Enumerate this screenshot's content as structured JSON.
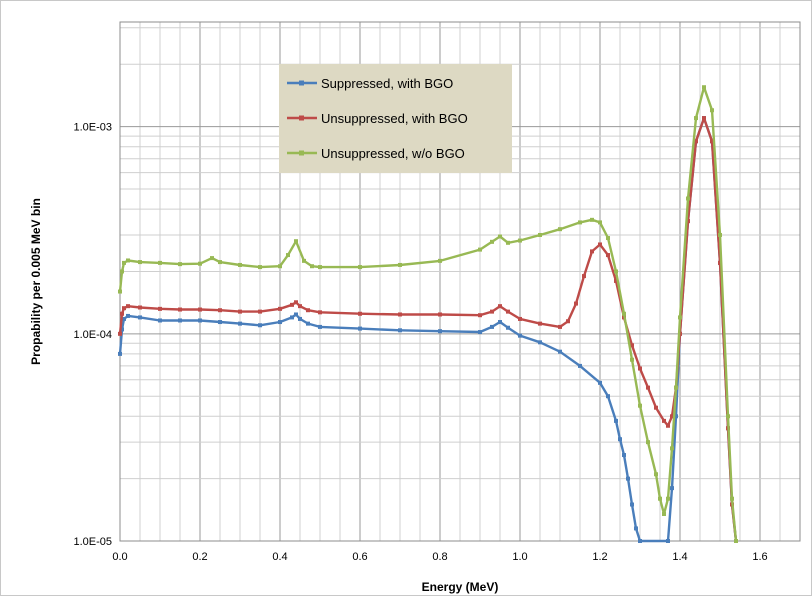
{
  "chart_data": {
    "type": "line",
    "xlabel": "Energy (MeV)",
    "ylabel": "Propability per 0.005 MeV bin",
    "x_ticks": [
      "0.0",
      "0.2",
      "0.4",
      "0.6",
      "0.8",
      "1.0",
      "1.2",
      "1.4",
      "1.6"
    ],
    "y_ticks": [
      "1.0E-05",
      "1.0E-04",
      "1.0E-03"
    ],
    "xlim": [
      0,
      1.7
    ],
    "ylim": [
      1e-05,
      0.0032
    ],
    "y_scale": "log",
    "grid": true,
    "legend_placement": "top-center",
    "legend_bg": "#ddd9c3",
    "series": [
      {
        "name": "Suppressed, with BGO",
        "color": "#4a7ebb",
        "x": [
          0.0,
          0.005,
          0.01,
          0.02,
          0.05,
          0.1,
          0.15,
          0.2,
          0.25,
          0.3,
          0.35,
          0.4,
          0.43,
          0.44,
          0.45,
          0.47,
          0.5,
          0.6,
          0.7,
          0.8,
          0.9,
          0.93,
          0.95,
          0.97,
          1.0,
          1.05,
          1.1,
          1.15,
          1.2,
          1.22,
          1.24,
          1.25,
          1.26,
          1.27,
          1.28,
          1.29,
          1.3,
          1.37,
          1.38,
          1.39,
          1.4,
          1.42,
          1.44,
          1.46,
          1.48,
          1.5,
          1.52,
          1.53,
          1.54
        ],
        "y": [
          8e-05,
          0.000105,
          0.000118,
          0.000122,
          0.00012,
          0.000116,
          0.000116,
          0.000116,
          0.000114,
          0.000112,
          0.00011,
          0.000114,
          0.00012,
          0.000124,
          0.000118,
          0.000112,
          0.000108,
          0.000106,
          0.000104,
          0.000103,
          0.000102,
          0.000108,
          0.000114,
          0.000107,
          9.8e-05,
          9.1e-05,
          8.2e-05,
          7e-05,
          5.8e-05,
          5e-05,
          3.8e-05,
          3.1e-05,
          2.6e-05,
          2e-05,
          1.5e-05,
          1.15e-05,
          1e-05,
          1e-05,
          1.8e-05,
          4e-05,
          0.0001,
          0.00035,
          0.00085,
          0.0011,
          0.00085,
          0.00022,
          3.5e-05,
          1.5e-05,
          1e-05
        ]
      },
      {
        "name": "Unsuppressed, with BGO",
        "color": "#be4b48",
        "x": [
          0.0,
          0.005,
          0.01,
          0.02,
          0.05,
          0.1,
          0.15,
          0.2,
          0.25,
          0.3,
          0.35,
          0.4,
          0.43,
          0.44,
          0.45,
          0.47,
          0.5,
          0.6,
          0.7,
          0.8,
          0.9,
          0.93,
          0.95,
          0.97,
          1.0,
          1.05,
          1.1,
          1.12,
          1.14,
          1.16,
          1.18,
          1.2,
          1.22,
          1.24,
          1.26,
          1.28,
          1.3,
          1.32,
          1.34,
          1.36,
          1.37,
          1.38,
          1.39,
          1.4,
          1.42,
          1.44,
          1.46,
          1.48,
          1.5,
          1.52,
          1.53,
          1.54
        ],
        "y": [
          0.0001,
          0.000125,
          0.000133,
          0.000136,
          0.000134,
          0.000132,
          0.000131,
          0.000131,
          0.00013,
          0.000128,
          0.000128,
          0.000132,
          0.000138,
          0.000142,
          0.000136,
          0.00013,
          0.000127,
          0.000125,
          0.000124,
          0.000124,
          0.000123,
          0.000128,
          0.000136,
          0.000128,
          0.000118,
          0.000112,
          0.000108,
          0.000115,
          0.00014,
          0.00019,
          0.00025,
          0.00027,
          0.00024,
          0.00018,
          0.00012,
          8.8e-05,
          6.8e-05,
          5.5e-05,
          4.4e-05,
          3.8e-05,
          3.6e-05,
          4e-05,
          5.5e-05,
          0.0001,
          0.00035,
          0.00085,
          0.0011,
          0.00085,
          0.00022,
          3.5e-05,
          1.5e-05,
          1e-05
        ]
      },
      {
        "name": "Unsuppressed, w/o BGO",
        "color": "#98b954",
        "x": [
          0.0,
          0.005,
          0.01,
          0.02,
          0.05,
          0.1,
          0.15,
          0.2,
          0.23,
          0.25,
          0.3,
          0.35,
          0.4,
          0.42,
          0.44,
          0.46,
          0.48,
          0.5,
          0.6,
          0.7,
          0.8,
          0.9,
          0.93,
          0.95,
          0.97,
          1.0,
          1.05,
          1.1,
          1.15,
          1.18,
          1.2,
          1.22,
          1.24,
          1.26,
          1.28,
          1.3,
          1.32,
          1.34,
          1.35,
          1.36,
          1.37,
          1.38,
          1.39,
          1.4,
          1.42,
          1.44,
          1.46,
          1.48,
          1.5,
          1.52,
          1.53,
          1.54
        ],
        "y": [
          0.00016,
          0.0002,
          0.00022,
          0.000226,
          0.000222,
          0.00022,
          0.000217,
          0.000218,
          0.000232,
          0.000222,
          0.000215,
          0.00021,
          0.000212,
          0.00024,
          0.00028,
          0.000225,
          0.000212,
          0.00021,
          0.00021,
          0.000215,
          0.000225,
          0.000255,
          0.000278,
          0.000295,
          0.000275,
          0.000282,
          0.0003,
          0.00032,
          0.000345,
          0.000355,
          0.000345,
          0.00029,
          0.0002,
          0.000125,
          7.5e-05,
          4.5e-05,
          3e-05,
          2.1e-05,
          1.6e-05,
          1.35e-05,
          1.6e-05,
          2.8e-05,
          5.5e-05,
          0.00012,
          0.00045,
          0.0011,
          0.00155,
          0.0012,
          0.0003,
          4e-05,
          1.6e-05,
          1e-05
        ]
      }
    ]
  }
}
